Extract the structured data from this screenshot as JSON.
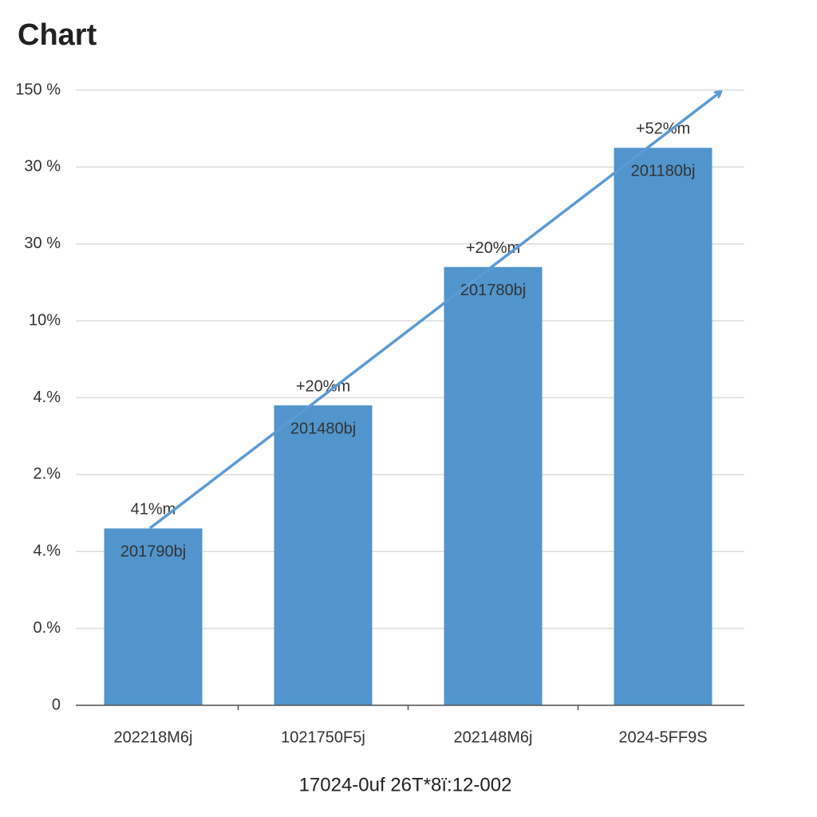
{
  "chart_data": {
    "type": "bar",
    "title": "Chart",
    "x_label": "17024-0uf 26T*8ï:12-002",
    "categories": [
      "202218M6j",
      "1021750F5j",
      "202148M6j",
      "2024-5FF9S"
    ],
    "values": [
      2.3,
      3.9,
      5.7,
      7.25
    ],
    "bar_labels": [
      "201790bj",
      "201480bj",
      "201780bj",
      "201180bj"
    ],
    "change_labels": [
      "41%m",
      "+20%m",
      "+20%m",
      "+52%m"
    ],
    "color": "#5195cc",
    "ylim": [
      0,
      8
    ],
    "yticks": [
      0,
      {
        "value": 1,
        "label": "0.%"
      },
      {
        "value": 2,
        "label": "4.%"
      },
      {
        "value": 3,
        "label": "2.%"
      },
      {
        "value": 4,
        "label": "4.%"
      },
      {
        "value": 5,
        "label": "10%"
      },
      {
        "value": 6,
        "label": "30 %"
      },
      {
        "value": 7,
        "label": "30 %"
      },
      {
        "value": 8,
        "label": "150 %"
      }
    ],
    "grid": true
  }
}
